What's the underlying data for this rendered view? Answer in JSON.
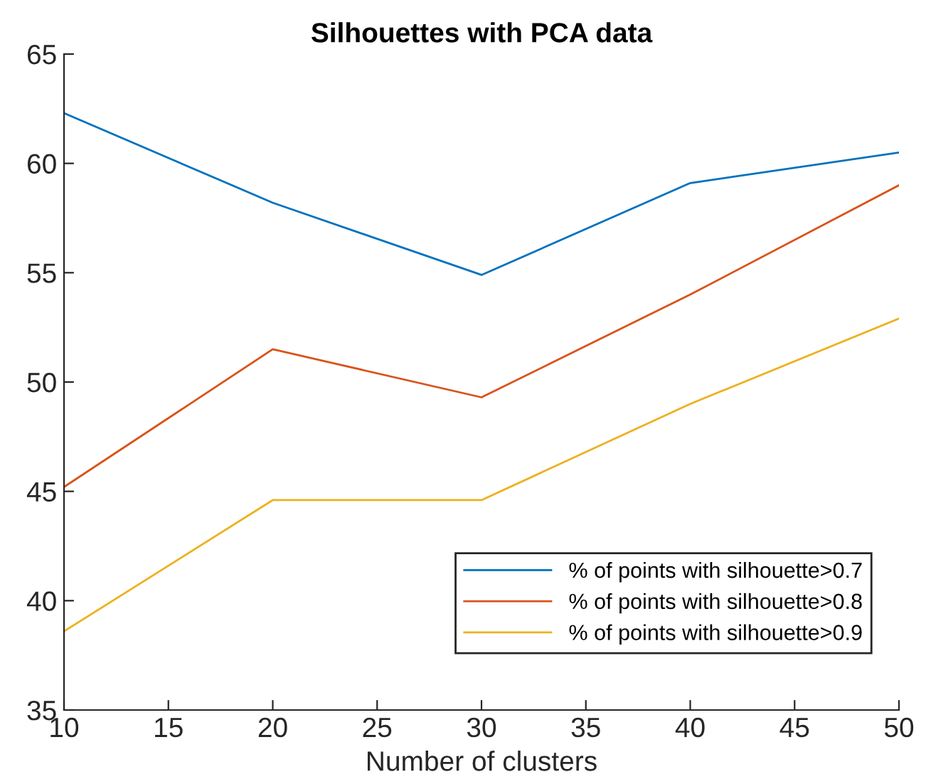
{
  "chart_data": {
    "type": "line",
    "title": "Silhouettes with PCA data",
    "xlabel": "Number of clusters",
    "x": [
      10,
      20,
      30,
      40,
      50
    ],
    "series": [
      {
        "name": "% of points with silhouette>0.7",
        "color": "#0072bd",
        "values": [
          62.3,
          58.2,
          54.9,
          59.1,
          60.5
        ]
      },
      {
        "name": "% of points with silhouette>0.8",
        "color": "#d95319",
        "values": [
          45.2,
          51.5,
          49.3,
          54.0,
          59.0
        ]
      },
      {
        "name": "% of points with silhouette>0.9",
        "color": "#edb120",
        "values": [
          38.6,
          44.6,
          44.6,
          49.0,
          52.9
        ]
      }
    ],
    "xlim": [
      10,
      50
    ],
    "xticks": [
      10,
      15,
      20,
      25,
      30,
      35,
      40,
      45,
      50
    ],
    "ylim": [
      35,
      65
    ],
    "yticks": [
      35,
      40,
      45,
      50,
      55,
      60,
      65
    ],
    "grid": false,
    "legend": "bottom right",
    "marker": "none",
    "line_style": "solid"
  }
}
